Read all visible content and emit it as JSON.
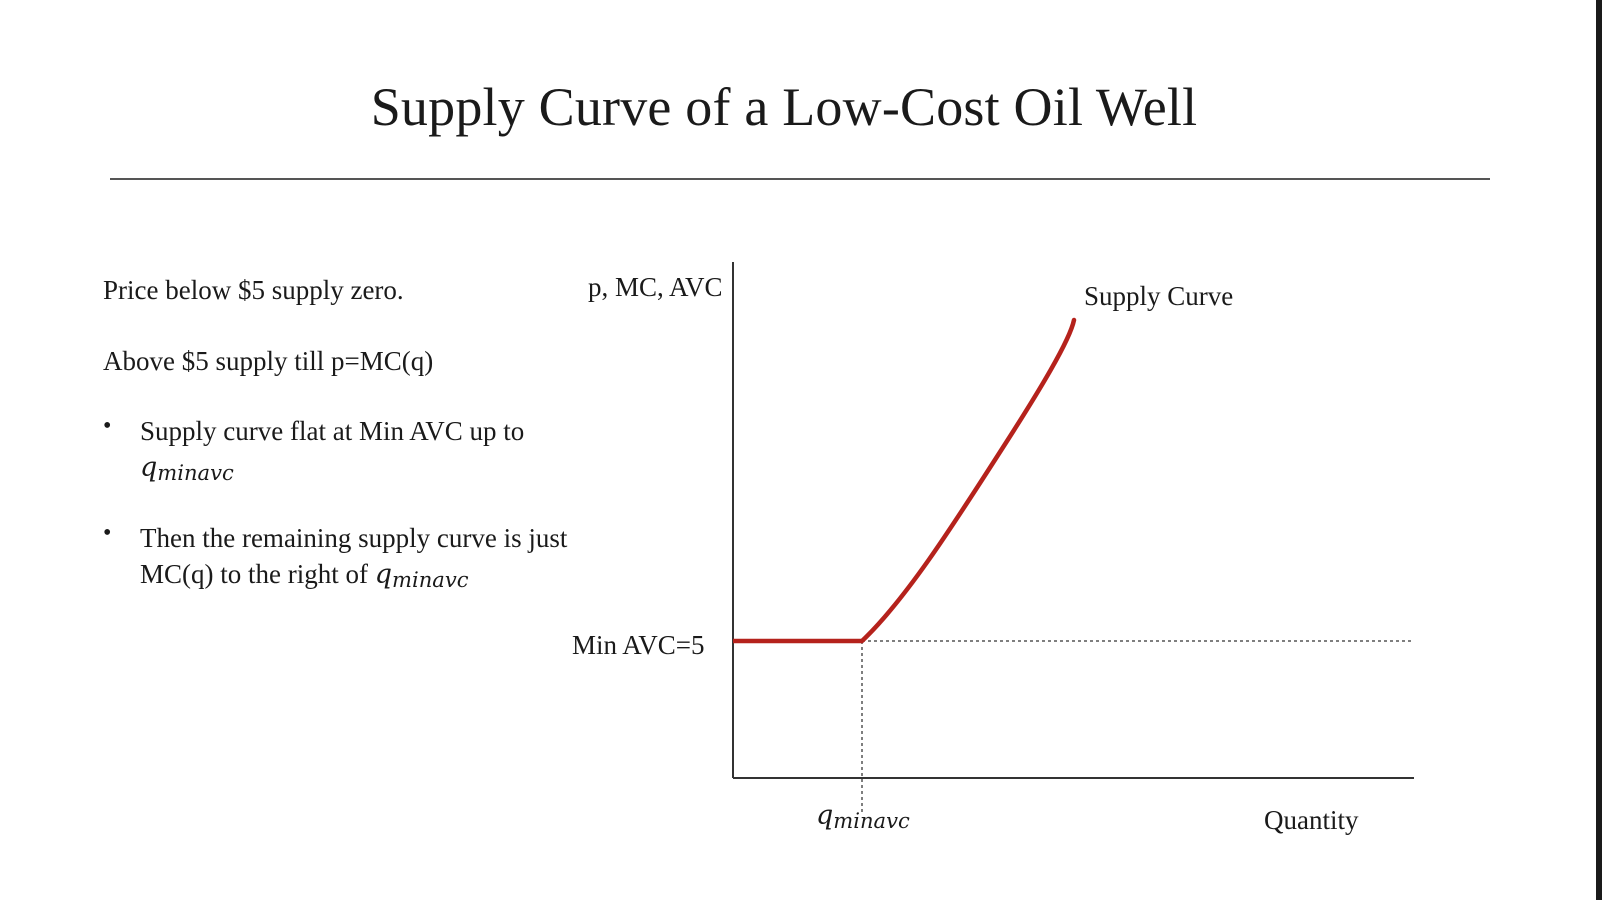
{
  "slide": {
    "title": "Supply Curve of a Low-Cost Oil Well"
  },
  "text": {
    "para_1": "Price below $5 supply zero.",
    "para_2": "Above $5 supply till p=MC(q)",
    "bullets": [
      {
        "marker": "•",
        "text_before": "Supply curve flat at Min AVC up to",
        "q_base": "q",
        "q_sub": "minavc"
      },
      {
        "marker": "•",
        "text_before": "Then the remaining supply curve is just MC(q) to the right of",
        "q_base": "q",
        "q_sub": "minavc"
      }
    ]
  },
  "diagram": {
    "y_axis_label": "p, MC, AVC",
    "x_axis_label": "Quantity",
    "supply_label": "Supply Curve",
    "min_avc_label": "Min AVC=5",
    "q_marker_base": "q",
    "q_marker_sub": "minavc",
    "colors": {
      "supply_curve": "#b5221c",
      "axes": "#333333",
      "guides": "#555555"
    }
  }
}
